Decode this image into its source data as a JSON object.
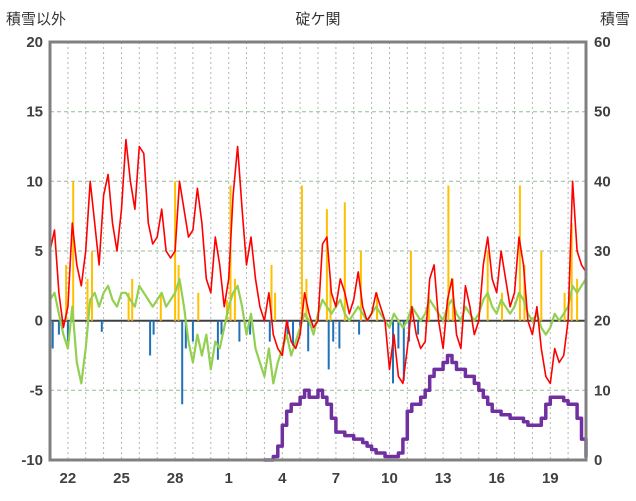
{
  "header": {
    "left_label": "積雪以外",
    "title": "碇ケ関",
    "right_label": "積雪"
  },
  "chart_data": {
    "type": "line",
    "title": "碇ケ関",
    "left_axis": {
      "label": "積雪以外",
      "min": -10,
      "max": 20,
      "ticks": [
        20,
        15,
        10,
        5,
        0,
        -5,
        -10
      ]
    },
    "right_axis": {
      "label": "積雪",
      "min": 0,
      "max": 60,
      "ticks": [
        60,
        50,
        40,
        30,
        20,
        10,
        0
      ]
    },
    "x_axis": {
      "min": 0,
      "max": 30,
      "tick_positions": [
        1,
        4,
        7,
        10,
        13,
        16,
        19,
        22,
        25,
        28
      ],
      "tick_labels": [
        "22",
        "25",
        "28",
        "1",
        "4",
        "7",
        "10",
        "13",
        "16",
        "19"
      ]
    },
    "grid": {
      "vertical_every_day": true,
      "v_color": "#b3b3b3",
      "h_color": "#94be94",
      "zero_line_color": "#404040",
      "frame_color": "#808080"
    },
    "series": [
      {
        "name": "orange-bars",
        "type": "bar",
        "axis": "left",
        "color": "#FFC000",
        "points": [
          [
            0.9,
            4
          ],
          [
            1.3,
            10
          ],
          [
            2.1,
            3
          ],
          [
            2.35,
            5
          ],
          [
            4.4,
            2
          ],
          [
            4.6,
            3
          ],
          [
            6.2,
            2
          ],
          [
            7.0,
            10
          ],
          [
            7.2,
            4
          ],
          [
            8.3,
            2
          ],
          [
            9.9,
            1.5
          ],
          [
            10.1,
            9.7
          ],
          [
            10.35,
            3
          ],
          [
            12.4,
            4
          ],
          [
            12.6,
            2
          ],
          [
            14.1,
            9.7
          ],
          [
            14.35,
            3
          ],
          [
            15.5,
            8
          ],
          [
            15.7,
            3
          ],
          [
            16.5,
            8.5
          ],
          [
            17.4,
            5
          ],
          [
            18.3,
            2
          ],
          [
            20.2,
            5
          ],
          [
            21.2,
            2
          ],
          [
            22.3,
            9.7
          ],
          [
            22.55,
            3
          ],
          [
            24.5,
            5
          ],
          [
            25.3,
            2
          ],
          [
            26.3,
            9.7
          ],
          [
            26.55,
            4
          ],
          [
            27.5,
            5
          ],
          [
            28.8,
            2
          ],
          [
            29.2,
            7
          ],
          [
            29.5,
            3
          ]
        ]
      },
      {
        "name": "blue-bars",
        "type": "bar",
        "axis": "left",
        "color": "#2072B8",
        "points": [
          [
            0.15,
            -2
          ],
          [
            0.5,
            -1
          ],
          [
            1.0,
            -1.5
          ],
          [
            2.9,
            -0.8
          ],
          [
            5.6,
            -2.5
          ],
          [
            5.8,
            -1
          ],
          [
            7.4,
            -6
          ],
          [
            7.6,
            -2
          ],
          [
            8.0,
            -1.5
          ],
          [
            9.4,
            -2.8
          ],
          [
            9.6,
            -1
          ],
          [
            10.6,
            -1.5
          ],
          [
            11.2,
            -1
          ],
          [
            12.3,
            -1.5
          ],
          [
            13.3,
            -1
          ],
          [
            13.6,
            -1.8
          ],
          [
            14.0,
            -1
          ],
          [
            14.45,
            -2.2
          ],
          [
            15.6,
            -3.5
          ],
          [
            15.85,
            -1.5
          ],
          [
            16.2,
            -2
          ],
          [
            17.3,
            -1
          ],
          [
            19.2,
            -4.5
          ],
          [
            19.5,
            -2
          ],
          [
            19.8,
            -4.3
          ],
          [
            20.1,
            -1.5
          ],
          [
            20.6,
            -1
          ]
        ]
      },
      {
        "name": "green-line",
        "type": "line",
        "axis": "left",
        "color": "#92D050",
        "width": 2.2,
        "x0": 0,
        "dx": 0.25,
        "y": [
          1.5,
          2,
          0.5,
          -1,
          -2,
          1,
          -3,
          -4.5,
          -2,
          1.5,
          2,
          1,
          2,
          2.5,
          1.5,
          1,
          2,
          2,
          1.5,
          1,
          2.5,
          2,
          1.5,
          1,
          1.5,
          2,
          1,
          1.5,
          2,
          3,
          1,
          -1.5,
          -3,
          -1,
          -2.5,
          -1,
          -3.5,
          -1.5,
          -2,
          -0.5,
          1,
          2,
          2.5,
          1,
          -1,
          0.5,
          -2,
          -3,
          -4,
          -2,
          -4.5,
          -3,
          -2,
          -1,
          -2.5,
          -1.5,
          -0.5,
          0.5,
          0,
          -1,
          0.5,
          1.5,
          1,
          0.5,
          1,
          1.5,
          0.5,
          0,
          0.5,
          1,
          0.5,
          0,
          0.5,
          1,
          0.5,
          0,
          -0.5,
          0.5,
          0,
          -0.5,
          0,
          1,
          0.5,
          0,
          0.5,
          1.5,
          1,
          0.5,
          0,
          1,
          1.5,
          0.5,
          0,
          1,
          0.5,
          0,
          0.5,
          1.5,
          2,
          1,
          0.5,
          1.5,
          1,
          0.5,
          1,
          2,
          1.5,
          0.5,
          0,
          0.5,
          -0.5,
          -1,
          -0.5,
          0.5,
          0,
          0.5,
          1,
          2.5,
          2,
          2.5,
          3
        ]
      },
      {
        "name": "red-line",
        "type": "line",
        "axis": "left",
        "color": "#FF0000",
        "width": 1.6,
        "x0": 0,
        "dx": 0.25,
        "y": [
          5,
          6.5,
          2,
          -0.5,
          1,
          7,
          4,
          2.5,
          5,
          10,
          7,
          4,
          9,
          10.5,
          7,
          5,
          8,
          13,
          10,
          8,
          12.5,
          12,
          7,
          5.5,
          6,
          8,
          5,
          4.5,
          5,
          10,
          8,
          6,
          6.5,
          9.5,
          7,
          3,
          2,
          6,
          4,
          1,
          3,
          9,
          12.5,
          8,
          4,
          6,
          3,
          1,
          0,
          2,
          -1,
          -2,
          -2.5,
          0,
          -1.5,
          -2,
          -1,
          2,
          0.5,
          -0.5,
          0,
          5.5,
          6,
          2,
          1,
          3,
          2,
          0.5,
          1.5,
          3.5,
          1,
          0,
          0.5,
          2,
          1,
          0,
          -3.5,
          -1,
          -4,
          -4.5,
          -2,
          1,
          -1,
          -2,
          -1.5,
          3,
          4,
          0,
          -2,
          1.5,
          3,
          -1,
          -2,
          2.5,
          1,
          -1,
          0,
          4,
          6,
          3,
          2,
          5,
          3,
          1,
          2,
          6,
          4,
          0,
          -1,
          1,
          -2,
          -4,
          -4.5,
          -2,
          -3,
          -2.5,
          0,
          10,
          5,
          4,
          3.5
        ]
      },
      {
        "name": "purple-line",
        "type": "line",
        "axis": "right",
        "color": "#7030A0",
        "width": 3.5,
        "step": true,
        "x0": 12,
        "dx": 0.25,
        "y": [
          0,
          0,
          0.5,
          2,
          5,
          7,
          8,
          8,
          9,
          10,
          9,
          9,
          10,
          9,
          8,
          6,
          4,
          4,
          3.5,
          3.5,
          3,
          3,
          2.5,
          2,
          1.5,
          1,
          1,
          0.5,
          0.5,
          0.5,
          1,
          3,
          7,
          8,
          8,
          9,
          10,
          12,
          13,
          13,
          14,
          15,
          14,
          13,
          13,
          12,
          12,
          11,
          10,
          9,
          8,
          7,
          7,
          6.5,
          6.5,
          6,
          6,
          6,
          5.5,
          5,
          5,
          5,
          6,
          8,
          9,
          9,
          9,
          8.5,
          8,
          8,
          6,
          3,
          0.5
        ]
      }
    ]
  }
}
